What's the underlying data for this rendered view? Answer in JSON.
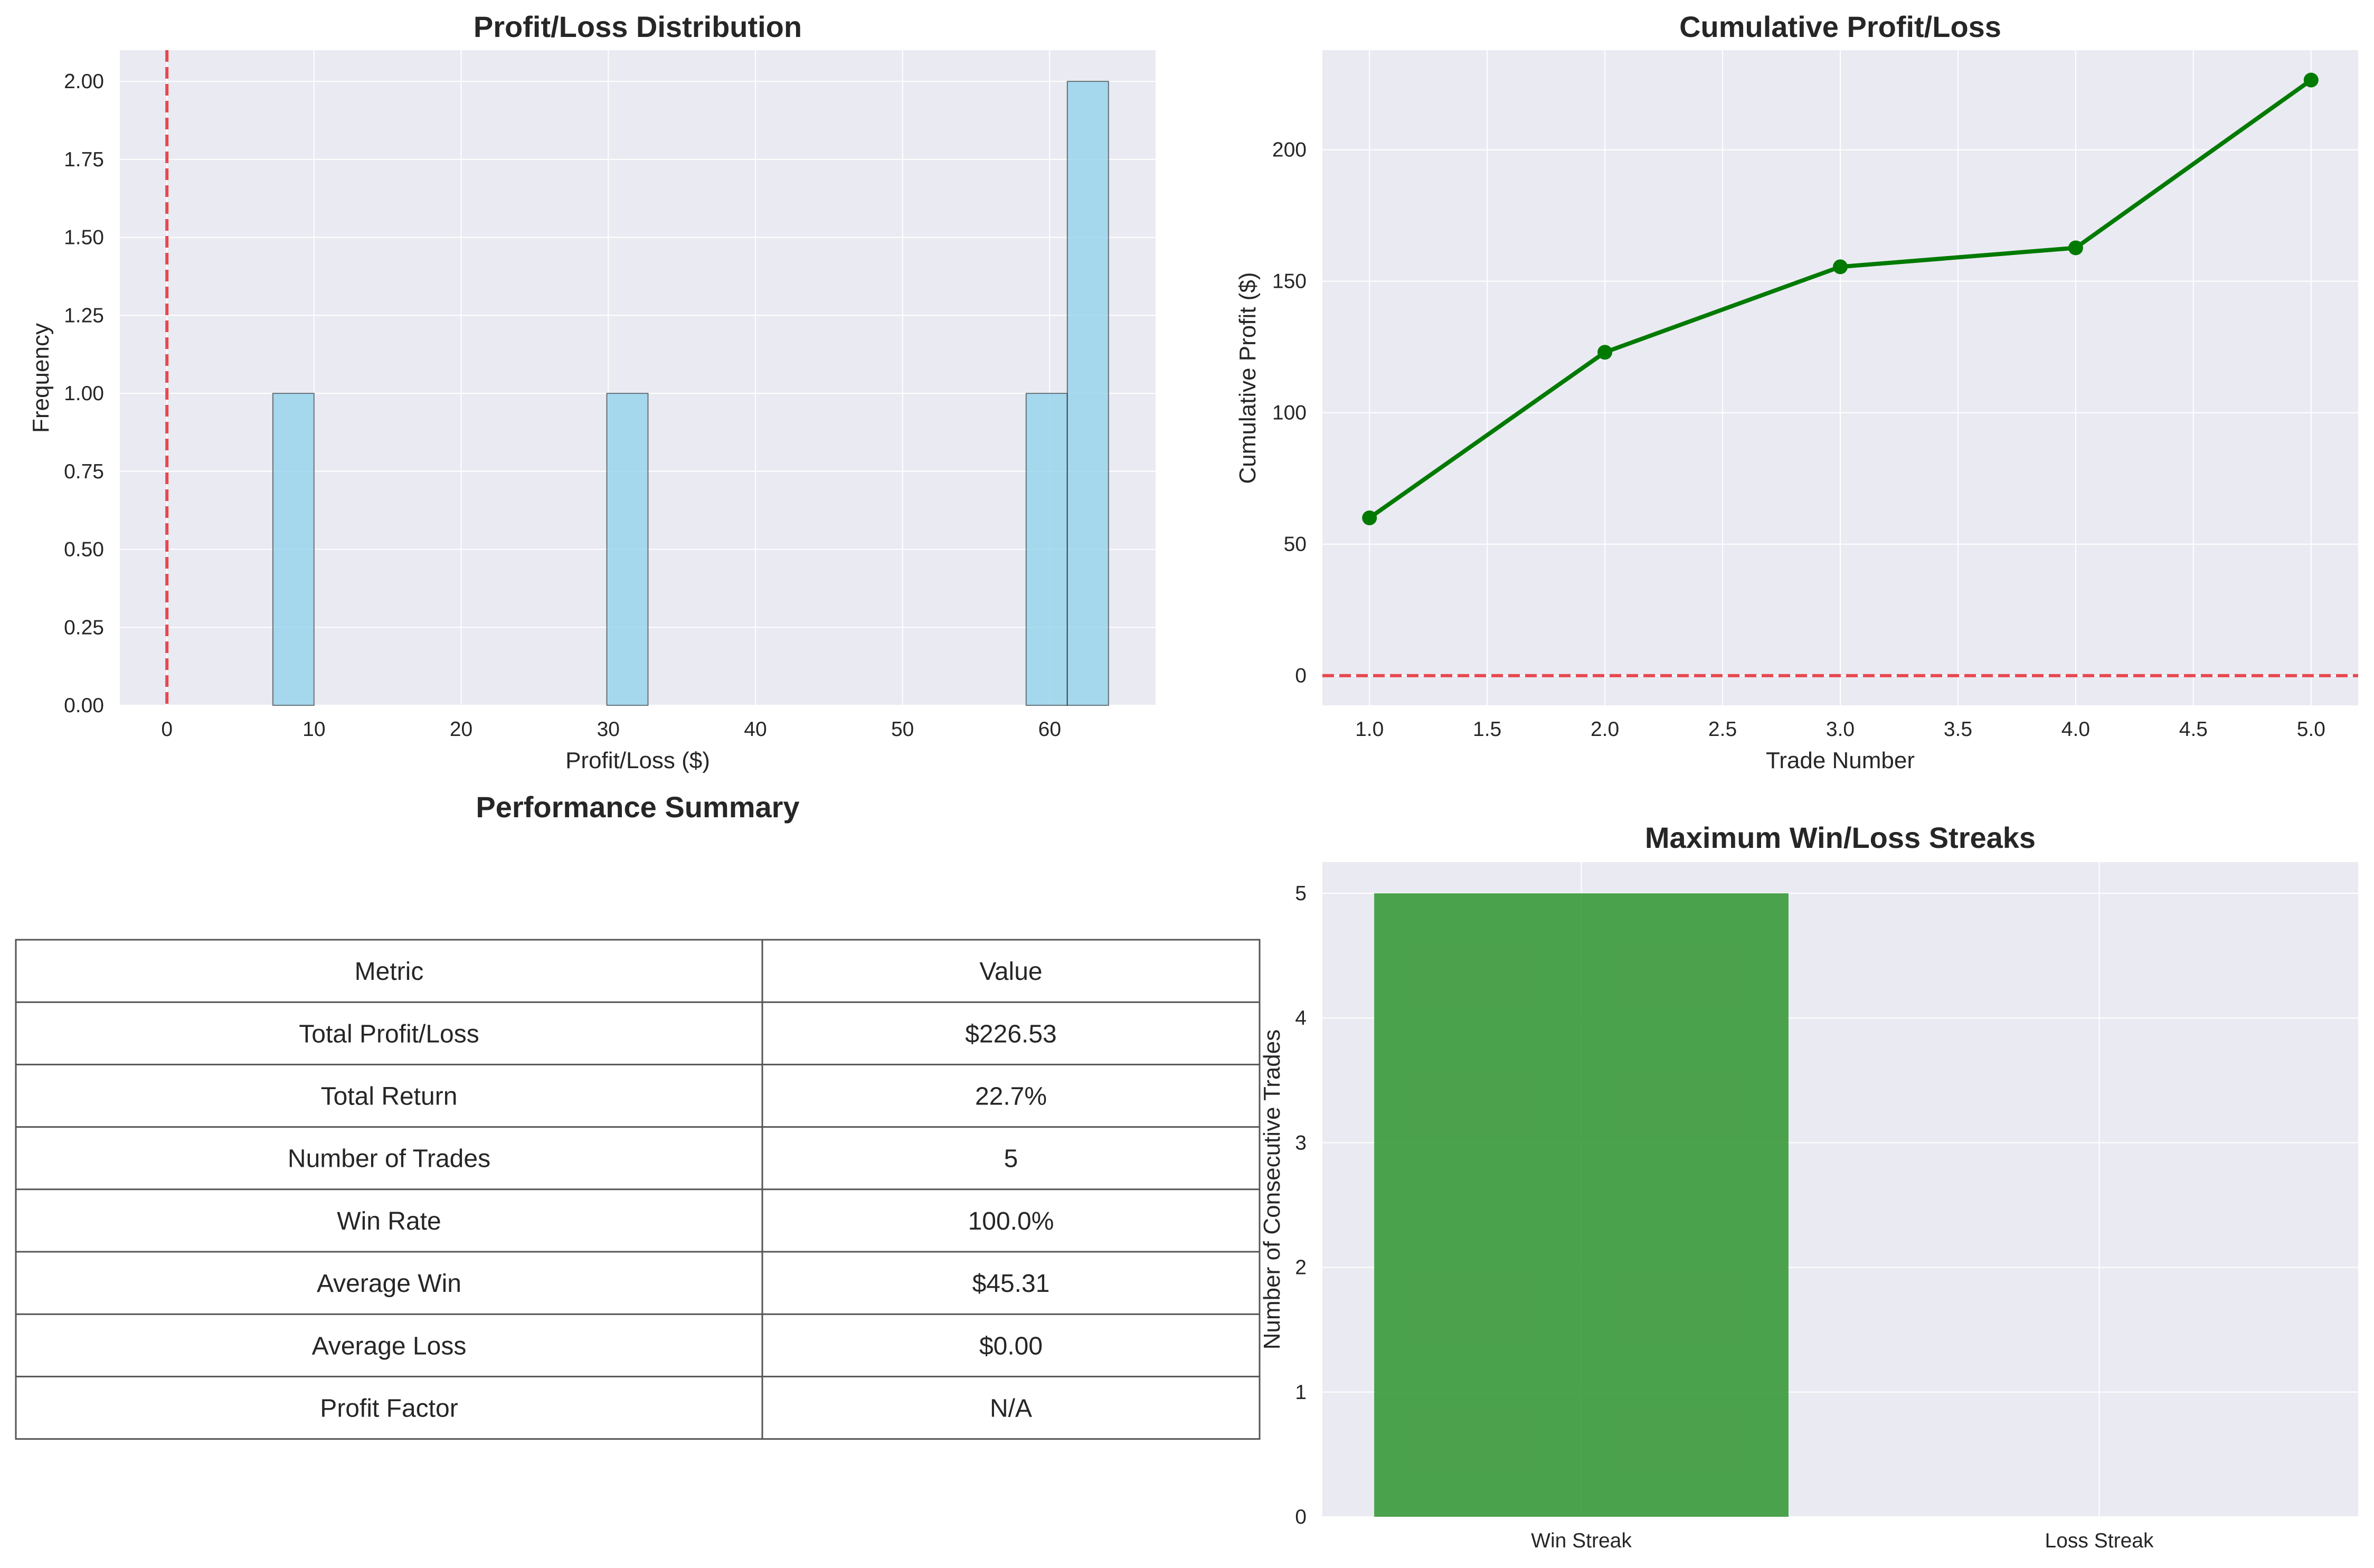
{
  "colors": {
    "axes_bg": "#EAEAF2",
    "grid": "#FFFFFF",
    "hist_bar": "#87CEEB",
    "zero_line": "#E8474F",
    "cum_line": "#007A00",
    "win_bar": "#3A9A3A"
  },
  "chart_data": [
    {
      "type": "bar",
      "title": "Profit/Loss Distribution",
      "xlabel": "Profit/Loss ($)",
      "ylabel": "Frequency",
      "xlim": [
        -3.2,
        67.2
      ],
      "ylim": [
        0,
        2.1
      ],
      "xticks": [
        0,
        10,
        20,
        30,
        40,
        50,
        60
      ],
      "xtick_labels": [
        "0",
        "10",
        "20",
        "30",
        "40",
        "50",
        "60"
      ],
      "yticks": [
        0,
        0.25,
        0.5,
        0.75,
        1.0,
        1.25,
        1.5,
        1.75,
        2.0
      ],
      "ytick_labels": [
        "0.00",
        "0.25",
        "0.50",
        "0.75",
        "1.00",
        "1.25",
        "1.50",
        "1.75",
        "2.00"
      ],
      "bins": [
        {
          "x0": 7.2,
          "x1": 10.0,
          "count": 1
        },
        {
          "x0": 29.9,
          "x1": 32.7,
          "count": 1
        },
        {
          "x0": 58.4,
          "x1": 61.2,
          "count": 1
        },
        {
          "x0": 61.2,
          "x1": 64.0,
          "count": 2
        }
      ],
      "reference_line": {
        "axis": "x",
        "value": 0,
        "style": "dashed"
      },
      "grid": true
    },
    {
      "type": "line",
      "title": "Cumulative Profit/Loss",
      "xlabel": "Trade Number",
      "ylabel": "Cumulative Profit ($)",
      "x": [
        1,
        2,
        3,
        4,
        5
      ],
      "y": [
        60.0,
        123.0,
        155.5,
        162.7,
        226.53
      ],
      "xlim": [
        0.8,
        5.2
      ],
      "ylim": [
        -11.3,
        237.9
      ],
      "xticks": [
        1.0,
        1.5,
        2.0,
        2.5,
        3.0,
        3.5,
        4.0,
        4.5,
        5.0
      ],
      "xtick_labels": [
        "1.0",
        "1.5",
        "2.0",
        "2.5",
        "3.0",
        "3.5",
        "4.0",
        "4.5",
        "5.0"
      ],
      "yticks": [
        0,
        50,
        100,
        150,
        200
      ],
      "ytick_labels": [
        "0",
        "50",
        "100",
        "150",
        "200"
      ],
      "reference_line": {
        "axis": "y",
        "value": 0,
        "style": "dashed"
      },
      "markers": true,
      "grid": true
    },
    {
      "type": "table",
      "title": "Performance Summary",
      "columns": [
        "Metric",
        "Value"
      ],
      "rows": [
        [
          "Total Profit/Loss",
          "$226.53"
        ],
        [
          "Total Return",
          "22.7%"
        ],
        [
          "Number of Trades",
          "5"
        ],
        [
          "Win Rate",
          "100.0%"
        ],
        [
          "Average Win",
          "$45.31"
        ],
        [
          "Average Loss",
          "$0.00"
        ],
        [
          "Profit Factor",
          "N/A"
        ]
      ]
    },
    {
      "type": "bar",
      "title": "Maximum Win/Loss Streaks",
      "xlabel": "",
      "ylabel": "Number of Consecutive Trades",
      "categories": [
        "Win Streak",
        "Loss Streak"
      ],
      "values": [
        5,
        0
      ],
      "ylim": [
        0,
        5.25
      ],
      "yticks": [
        0,
        1,
        2,
        3,
        4,
        5
      ],
      "ytick_labels": [
        "0",
        "1",
        "2",
        "3",
        "4",
        "5"
      ],
      "grid": true
    }
  ]
}
